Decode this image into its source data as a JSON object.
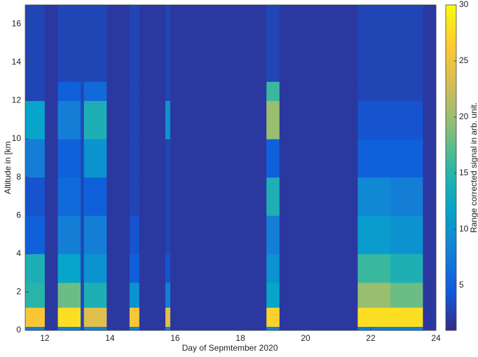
{
  "chart_data": {
    "type": "heatmap",
    "xlabel": "Day of Sepmtember 2020",
    "ylabel": "Altitude in [km",
    "colorbar_label": "Range corrected signal in arb. unit.",
    "xlim": [
      11.4,
      24
    ],
    "xticks": [
      12,
      14,
      16,
      18,
      20,
      22,
      24
    ],
    "ylim": [
      0,
      17
    ],
    "yticks": [
      0,
      2,
      4,
      6,
      8,
      10,
      12,
      14,
      16
    ],
    "clim": [
      1,
      30
    ],
    "colorbar_ticks": [
      5,
      10,
      15,
      20,
      25,
      30
    ],
    "colormap": [
      "#352a87",
      "#0f5cdd",
      "#1481d6",
      "#06a4ca",
      "#2eb7a4",
      "#87bf77",
      "#d1bb59",
      "#fec832",
      "#f9fb0e"
    ],
    "x_edges": [
      11.4,
      12.0,
      12.4,
      13.1,
      13.2,
      13.9,
      14.6,
      14.9,
      15.7,
      15.85,
      18.8,
      19.2,
      21.6,
      22.6,
      23.6,
      24
    ],
    "y_edges": [
      0,
      0.2,
      1.2,
      2.5,
      4,
      6,
      8,
      10,
      12,
      13,
      17
    ],
    "z": [
      [
        8,
        2,
        8,
        3,
        8,
        2,
        8,
        2,
        8,
        2,
        8,
        2,
        8,
        8,
        2
      ],
      [
        26,
        2,
        28,
        3,
        24,
        2,
        26,
        2,
        24,
        2,
        27,
        2,
        28,
        28,
        2
      ],
      [
        15,
        2,
        18,
        3,
        14,
        2,
        10,
        2,
        8,
        2,
        12,
        2,
        20,
        18,
        2
      ],
      [
        14,
        2,
        12,
        3,
        10,
        2,
        5,
        2,
        4,
        2,
        10,
        2,
        16,
        14,
        2
      ],
      [
        5,
        2,
        8,
        3,
        8,
        2,
        4,
        2,
        3,
        2,
        8,
        2,
        11,
        10,
        2
      ],
      [
        4,
        2,
        6,
        3,
        5,
        2,
        3,
        2,
        3,
        2,
        14,
        2,
        9,
        8,
        2
      ],
      [
        8,
        2,
        5,
        3,
        10,
        2,
        3,
        2,
        3,
        2,
        5,
        2,
        5,
        5,
        2
      ],
      [
        12,
        2,
        8,
        3,
        14,
        2,
        3,
        2,
        10,
        2,
        20,
        2,
        4,
        4,
        2
      ],
      [
        3,
        2,
        5,
        3,
        6,
        2,
        3,
        2,
        3,
        2,
        16,
        2,
        3,
        3,
        2
      ],
      [
        3,
        2,
        3,
        3,
        3,
        2,
        3,
        2,
        3,
        2,
        3,
        2,
        3,
        3,
        2
      ]
    ]
  }
}
